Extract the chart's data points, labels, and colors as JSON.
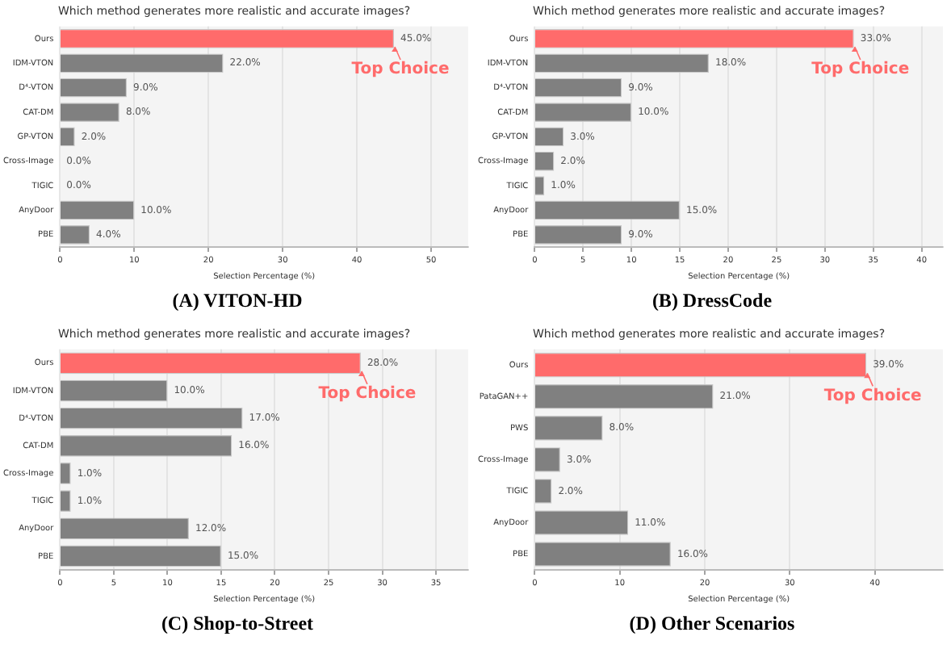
{
  "chart_data": [
    {
      "type": "bar",
      "orientation": "horizontal",
      "title": "Which method generates more realistic and accurate images?",
      "xlabel": "Selection Percentage (%)",
      "categories": [
        "Ours",
        "IDM-VTON",
        "D⁴-VTON",
        "CAT-DM",
        "GP-VTON",
        "Cross-Image",
        "TIGIC",
        "AnyDoor",
        "PBE"
      ],
      "values": [
        45,
        22,
        9,
        8,
        2,
        0,
        0,
        10,
        4
      ],
      "colors": [
        "#ff6b6b",
        "#808080",
        "#808080",
        "#808080",
        "#808080",
        "#808080",
        "#808080",
        "#808080",
        "#808080"
      ],
      "value_labels": [
        "45.0%",
        "22.0%",
        "9.0%",
        "8.0%",
        "2.0%",
        "0.0%",
        "0.0%",
        "10.0%",
        "4.0%"
      ],
      "xlim": [
        0,
        55
      ],
      "xticks": [
        0,
        10,
        20,
        30,
        40,
        50
      ],
      "grid": "x",
      "annotations": [
        {
          "text": "Top Choice",
          "x": 45,
          "y": "Ours"
        },
        "(A) VITON-HD"
      ]
    },
    {
      "type": "bar",
      "orientation": "horizontal",
      "title": "Which method generates more realistic and accurate images?",
      "xlabel": "Selection Percentage (%)",
      "categories": [
        "Ours",
        "IDM-VTON",
        "D⁴-VTON",
        "CAT-DM",
        "GP-VTON",
        "Cross-Image",
        "TIGIC",
        "AnyDoor",
        "PBE"
      ],
      "values": [
        33,
        18,
        9,
        10,
        3,
        2,
        1,
        15,
        9
      ],
      "colors": [
        "#ff6b6b",
        "#808080",
        "#808080",
        "#808080",
        "#808080",
        "#808080",
        "#808080",
        "#808080",
        "#808080"
      ],
      "value_labels": [
        "33.0%",
        "18.0%",
        "9.0%",
        "10.0%",
        "3.0%",
        "2.0%",
        "1.0%",
        "15.0%",
        "9.0%"
      ],
      "xlim": [
        0,
        42.2
      ],
      "xticks": [
        0,
        5,
        10,
        15,
        20,
        25,
        30,
        35,
        40
      ],
      "grid": "x",
      "annotations": [
        {
          "text": "Top Choice",
          "x": 33,
          "y": "Ours"
        },
        "(B) DressCode"
      ]
    },
    {
      "type": "bar",
      "orientation": "horizontal",
      "title": "Which method generates more realistic and accurate images?",
      "xlabel": "Selection Percentage (%)",
      "categories": [
        "Ours",
        "IDM-VTON",
        "D⁴-VTON",
        "CAT-DM",
        "Cross-Image",
        "TIGIC",
        "AnyDoor",
        "PBE"
      ],
      "values": [
        28,
        10,
        17,
        16,
        1,
        1,
        12,
        15
      ],
      "colors": [
        "#ff6b6b",
        "#808080",
        "#808080",
        "#808080",
        "#808080",
        "#808080",
        "#808080",
        "#808080"
      ],
      "value_labels": [
        "28.0%",
        "10.0%",
        "17.0%",
        "16.0%",
        "1.0%",
        "1.0%",
        "12.0%",
        "15.0%"
      ],
      "xlim": [
        0,
        38
      ],
      "xticks": [
        0,
        5,
        10,
        15,
        20,
        25,
        30,
        35
      ],
      "grid": "x",
      "annotations": [
        {
          "text": "Top Choice",
          "x": 28,
          "y": "Ours"
        },
        "(C) Shop-to-Street"
      ]
    },
    {
      "type": "bar",
      "orientation": "horizontal",
      "title": "Which method generates more realistic and accurate images?",
      "xlabel": "Selection Percentage (%)",
      "categories": [
        "Ours",
        "PataGAN++",
        "PWS",
        "Cross-Image",
        "TIGIC",
        "AnyDoor",
        "PBE"
      ],
      "values": [
        39,
        21,
        8,
        3,
        2,
        11,
        16
      ],
      "colors": [
        "#ff6b6b",
        "#808080",
        "#808080",
        "#808080",
        "#808080",
        "#808080",
        "#808080"
      ],
      "value_labels": [
        "39.0%",
        "21.0%",
        "8.0%",
        "3.0%",
        "2.0%",
        "11.0%",
        "16.0%"
      ],
      "xlim": [
        0,
        48
      ],
      "xticks": [
        0,
        10,
        20,
        30,
        40
      ],
      "grid": "x",
      "annotations": [
        {
          "text": "Top Choice",
          "x": 39,
          "y": "Ours"
        },
        "(D) Other Scenarios"
      ]
    }
  ]
}
